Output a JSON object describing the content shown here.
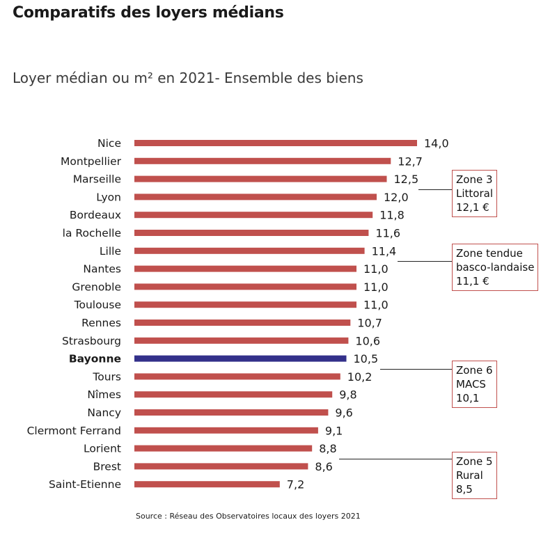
{
  "title": "Comparatifs des loyers médians",
  "subtitle": "Loyer médian ou m² en 2021- Ensemble des biens",
  "source": "Source : Réseau des Observatoires locaux des loyers 2021",
  "colors": {
    "bar": "#c0504d",
    "highlight": "#33308a",
    "zone_border": "#c0504d"
  },
  "chart_data": {
    "type": "bar",
    "orientation": "horizontal",
    "categories": [
      "Nice",
      "Montpellier",
      "Marseille",
      "Lyon",
      "Bordeaux",
      "la Rochelle",
      "Lille",
      "Nantes",
      "Grenoble",
      "Toulouse",
      "Rennes",
      "Strasbourg",
      "Bayonne",
      "Tours",
      "Nîmes",
      "Nancy",
      "Clermont Ferrand",
      "Lorient",
      "Brest",
      "Saint-Etienne"
    ],
    "values": [
      14.0,
      12.7,
      12.5,
      12.0,
      11.8,
      11.6,
      11.4,
      11.0,
      11.0,
      11.0,
      10.7,
      10.6,
      10.5,
      10.2,
      9.8,
      9.6,
      9.1,
      8.8,
      8.6,
      7.2
    ],
    "value_labels": [
      "14,0",
      "12,7",
      "12,5",
      "12,0",
      "11,8",
      "11,6",
      "11,4",
      "11,0",
      "11,0",
      "11,0",
      "10,7",
      "10,6",
      "10,5",
      "10,2",
      "9,8",
      "9,6",
      "9,1",
      "8,8",
      "8,6",
      "7,2"
    ],
    "highlight_category": "Bayonne",
    "xlim": [
      0,
      14
    ],
    "grid": false,
    "legend": "none",
    "annotations": [
      {
        "lines": [
          "Zone 3",
          "Littoral",
          "12,1 €"
        ],
        "row": "Lyon"
      },
      {
        "lines": [
          "Zone tendue",
          "basco-landaise",
          "11,1 €"
        ],
        "row": "Nantes"
      },
      {
        "lines": [
          "Zone 6",
          "MACS",
          "10,1"
        ],
        "row": "Tours"
      },
      {
        "lines": [
          "Zone 5",
          "Rural",
          "8,5"
        ],
        "row": "Brest"
      }
    ]
  }
}
